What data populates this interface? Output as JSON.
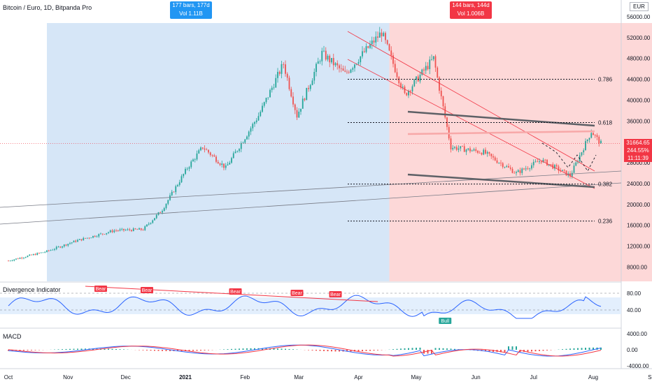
{
  "header": {
    "title": "Bitcoin / Euro, 1D, Bitpanda Pro",
    "currency": "EUR"
  },
  "ranges": {
    "left": {
      "bars": "177 bars, 177d",
      "vol": "Vol 1.11B",
      "color": "#2196f3"
    },
    "right": {
      "bars": "144 bars, 144d",
      "vol": "Vol 1.006B",
      "color": "#f23645"
    }
  },
  "price_tag": {
    "price": "31664.65",
    "change": "244.55%",
    "time": "11:11:39"
  },
  "indicators": {
    "divergence": "Divergence Indicator",
    "macd": "MACD"
  },
  "colors": {
    "up": "#26a69a",
    "down": "#ef5350",
    "rsi": "#2962ff",
    "left_zone": "#d6e6f7",
    "right_zone": "#fdd8d8"
  },
  "chart_data": [
    {
      "type": "candlestick",
      "title": "Bitcoin / Euro, 1D, Bitpanda Pro",
      "y_ticks": [
        "56000.00",
        "52000.00",
        "48000.00",
        "44000.00",
        "40000.00",
        "36000.00",
        "32000.00",
        "28000.00",
        "24000.00",
        "20000.00",
        "16000.00",
        "12000.00",
        "8000.00"
      ],
      "x_ticks": [
        "Oct",
        "Nov",
        "Dec",
        "2021",
        "Feb",
        "Mar",
        "Apr",
        "May",
        "Jun",
        "Jul",
        "Aug",
        "Sep"
      ],
      "approx_closes": [
        {
          "date": "2020-10-01",
          "close": 9200
        },
        {
          "date": "2020-10-21",
          "close": 11000
        },
        {
          "date": "2020-11-05",
          "close": 13000
        },
        {
          "date": "2020-11-25",
          "close": 15000
        },
        {
          "date": "2020-12-10",
          "close": 15200
        },
        {
          "date": "2020-12-20",
          "close": 19000
        },
        {
          "date": "2021-01-02",
          "close": 27000
        },
        {
          "date": "2021-01-10",
          "close": 31000
        },
        {
          "date": "2021-01-22",
          "close": 27000
        },
        {
          "date": "2021-02-08",
          "close": 37000
        },
        {
          "date": "2021-02-21",
          "close": 47000
        },
        {
          "date": "2021-02-28",
          "close": 37000
        },
        {
          "date": "2021-03-13",
          "close": 49000
        },
        {
          "date": "2021-03-25",
          "close": 45000
        },
        {
          "date": "2021-04-13",
          "close": 53000
        },
        {
          "date": "2021-04-25",
          "close": 41000
        },
        {
          "date": "2021-05-10",
          "close": 48000
        },
        {
          "date": "2021-05-19",
          "close": 31000
        },
        {
          "date": "2021-06-05",
          "close": 30000
        },
        {
          "date": "2021-06-22",
          "close": 26000
        },
        {
          "date": "2021-07-05",
          "close": 28500
        },
        {
          "date": "2021-07-20",
          "close": 25500
        },
        {
          "date": "2021-07-31",
          "close": 34000
        },
        {
          "date": "2021-08-05",
          "close": 31665
        }
      ],
      "fib_levels": [
        {
          "label": "0.786",
          "price": 44000
        },
        {
          "label": "0.618",
          "price": 35700
        },
        {
          "label": "0.382",
          "price": 23900
        },
        {
          "label": "0.236",
          "price": 16800
        }
      ],
      "last_price": 31664.65
    },
    {
      "type": "line",
      "name": "Divergence Indicator",
      "y_ticks": [
        "80.00",
        "40.00"
      ],
      "bands": [
        70,
        30
      ],
      "labels": [
        "Bear",
        "Bear",
        "Bear",
        "Bear",
        "Bear",
        "Bull"
      ]
    },
    {
      "type": "line",
      "name": "MACD",
      "y_ticks": [
        "4000.00",
        "0.00",
        "-4000.00"
      ]
    }
  ]
}
